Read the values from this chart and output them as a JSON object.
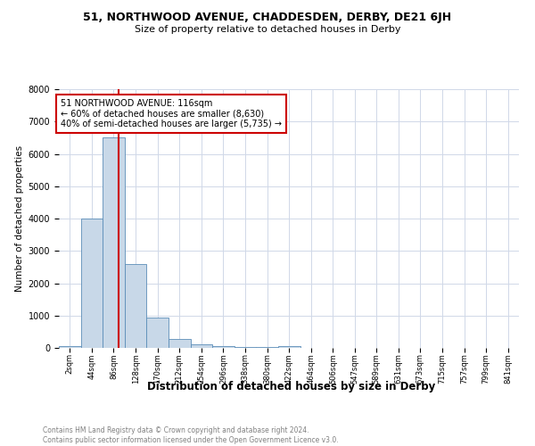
{
  "title": "51, NORTHWOOD AVENUE, CHADDESDEN, DERBY, DE21 6JH",
  "subtitle": "Size of property relative to detached houses in Derby",
  "xlabel": "Distribution of detached houses by size in Derby",
  "ylabel": "Number of detached properties",
  "footer": "Contains HM Land Registry data © Crown copyright and database right 2024.\nContains public sector information licensed under the Open Government Licence v3.0.",
  "property_size": 116,
  "property_label": "51 NORTHWOOD AVENUE: 116sqm",
  "annotation_line1": "← 60% of detached houses are smaller (8,630)",
  "annotation_line2": "40% of semi-detached houses are larger (5,735) →",
  "bar_edges": [
    2,
    44,
    86,
    128,
    170,
    212,
    254,
    296,
    338,
    380,
    422,
    464,
    506,
    547,
    589,
    631,
    673,
    715,
    757,
    799,
    841
  ],
  "bar_heights": [
    50,
    4000,
    6500,
    2600,
    950,
    280,
    110,
    55,
    30,
    15,
    50,
    5,
    3,
    2,
    2,
    1,
    1,
    1,
    0,
    0,
    0
  ],
  "bar_color": "#c8d8e8",
  "bar_edge_color": "#5b8db8",
  "red_line_color": "#cc0000",
  "annotation_box_color": "#cc0000",
  "background_color": "#ffffff",
  "grid_color": "#d0d8e8",
  "ylim": [
    0,
    8000
  ],
  "yticks": [
    0,
    1000,
    2000,
    3000,
    4000,
    5000,
    6000,
    7000,
    8000
  ],
  "title_fontsize": 9,
  "subtitle_fontsize": 8,
  "ylabel_fontsize": 7.5,
  "xlabel_fontsize": 8.5,
  "tick_fontsize": 6,
  "annotation_fontsize": 7,
  "footer_fontsize": 5.5
}
